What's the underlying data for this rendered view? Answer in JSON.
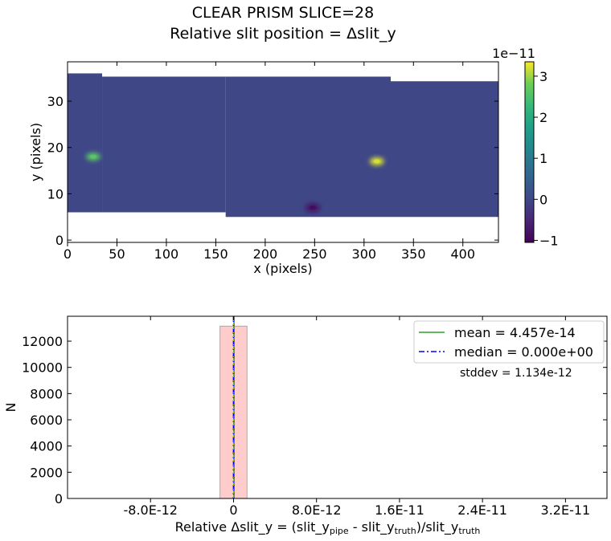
{
  "figure": {
    "title_line1": "CLEAR   PRISM   SLICE=28",
    "title_line2": "Relative slit position = Δslit_y"
  },
  "chart_data": [
    {
      "type": "heatmap",
      "xlabel": "x (pixels)",
      "ylabel": "y (pixels)",
      "xlim": [
        0,
        436
      ],
      "ylim": [
        -0.5,
        38.5
      ],
      "xticks": [
        0,
        50,
        100,
        150,
        200,
        250,
        300,
        350,
        400
      ],
      "yticks": [
        0,
        10,
        20,
        30
      ],
      "background_value": 0,
      "colormap": "viridis",
      "valid_region": [
        {
          "x0": 0,
          "x1": 35,
          "y0": 6,
          "y1": 36
        },
        {
          "x0": 35,
          "x1": 160,
          "y0": 6,
          "y1": 35.3
        },
        {
          "x0": 160,
          "x1": 327,
          "y0": 5,
          "y1": 35.3
        },
        {
          "x0": 327,
          "x1": 436,
          "y0": 5,
          "y1": 34.3
        }
      ],
      "features": [
        {
          "x": 26,
          "y": 18,
          "value": 2.6
        },
        {
          "x": 313,
          "y": 17,
          "value": 3.2
        },
        {
          "x": 248,
          "y": 7,
          "value": -0.9
        }
      ],
      "colorbar": {
        "range": [
          -1.05,
          3.35
        ],
        "ticks": [
          -1,
          0,
          1,
          2,
          3
        ],
        "offset_label": "1e−11"
      }
    },
    {
      "type": "bar",
      "xlabel_main": "Relative Δslit_y = (slit_y",
      "xlabel_sub1": "pipe",
      "xlabel_mid": " - slit_y",
      "xlabel_sub2": "truth",
      "xlabel_tail": ")/slit_y",
      "xlabel_sub3": "truth",
      "ylabel": "N",
      "xlim": [
        -1.6e-11,
        3.6e-11
      ],
      "ylim": [
        0,
        13900
      ],
      "xticks": [
        -8e-12,
        0,
        8e-12,
        1.6e-11,
        2.4e-11,
        3.2e-11
      ],
      "xtick_labels": [
        "-8.0E-12",
        "0",
        "8.0E-12",
        "1.6E-11",
        "2.4E-11",
        "3.2E-11"
      ],
      "yticks": [
        0,
        2000,
        4000,
        6000,
        8000,
        10000,
        12000
      ],
      "bins": [
        {
          "x0": -1.3e-12,
          "x1": 1.3e-12,
          "count": 13150
        }
      ],
      "bar_color": "#ffcccc",
      "mean": 4.457e-14,
      "median": 0,
      "legend": {
        "position": "top-right",
        "mean_label": "mean = 4.457e-14",
        "median_label": "median = 0.000e+00",
        "mean_color": "#2ca02c",
        "median_color": "#0000ff"
      },
      "stddev_label": "stddev = 1.134e-12"
    }
  ]
}
